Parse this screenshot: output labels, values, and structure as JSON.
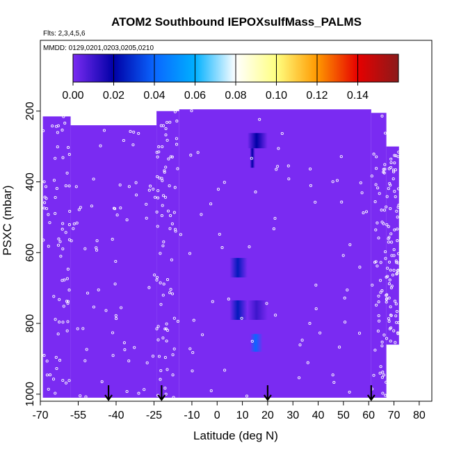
{
  "chart_data": {
    "type": "heatmap",
    "title": "ATOM2 Southbound IEPOXsulfMass_PALMS",
    "subtitle_flights": "Flts: 2,3,4,5,6",
    "subtitle_dates": "MMDD: 0129,0201,0203,0205,0210",
    "xlabel": "Latitude (deg N)",
    "ylabel": "PSXC (mbar)",
    "xlim": [
      -70,
      85
    ],
    "ylim": [
      1020,
      0
    ],
    "x_ticks": [
      -70,
      -55,
      -40,
      -25,
      -10,
      0,
      10,
      20,
      30,
      40,
      50,
      60,
      70,
      80
    ],
    "y_ticks": [
      200,
      400,
      600,
      800,
      1000
    ],
    "colorbar": {
      "min": 0.0,
      "max": 0.16,
      "ticks": [
        "0.00",
        "0.02",
        "0.04",
        "0.06",
        "0.08",
        "0.10",
        "0.12",
        "0.14"
      ],
      "tick_values": [
        0.0,
        0.02,
        0.04,
        0.06,
        0.08,
        0.1,
        0.12,
        0.14
      ],
      "colors": [
        "#7a2bf2",
        "#0000a6",
        "#0a66ff",
        "#00b0ff",
        "#ffffff",
        "#ffff80",
        "#ff9900",
        "#e60000",
        "#8b1a1a"
      ]
    },
    "background_value": 0.0,
    "coverage": [
      {
        "lat": [
          -69,
          -58
        ],
        "p": [
          215,
          1010
        ]
      },
      {
        "lat": [
          -58,
          -24
        ],
        "p": [
          240,
          1010
        ]
      },
      {
        "lat": [
          -24,
          -15
        ],
        "p": [
          200,
          1010
        ]
      },
      {
        "lat": [
          -15,
          61
        ],
        "p": [
          195,
          1010
        ]
      },
      {
        "lat": [
          61,
          67
        ],
        "p": [
          205,
          1010
        ]
      },
      {
        "lat": [
          67,
          72
        ],
        "p": [
          300,
          860
        ]
      }
    ],
    "patches": [
      {
        "lat": [
          12,
          20
        ],
        "p": [
          262,
          305
        ],
        "value": 0.02
      },
      {
        "lat": [
          13,
          15
        ],
        "p": [
          305,
          360
        ],
        "value": 0.02
      },
      {
        "lat": [
          5,
          12
        ],
        "p": [
          615,
          670
        ],
        "value": 0.025
      },
      {
        "lat": [
          5,
          12
        ],
        "p": [
          735,
          790
        ],
        "value": 0.025
      },
      {
        "lat": [
          12,
          20
        ],
        "p": [
          735,
          790
        ],
        "value": 0.01
      },
      {
        "lat": [
          13,
          18
        ],
        "p": [
          830,
          880
        ],
        "value": 0.04
      }
    ],
    "flight_markers_lat": [
      -43,
      -22,
      20,
      61
    ],
    "sample_point_count": 420
  }
}
